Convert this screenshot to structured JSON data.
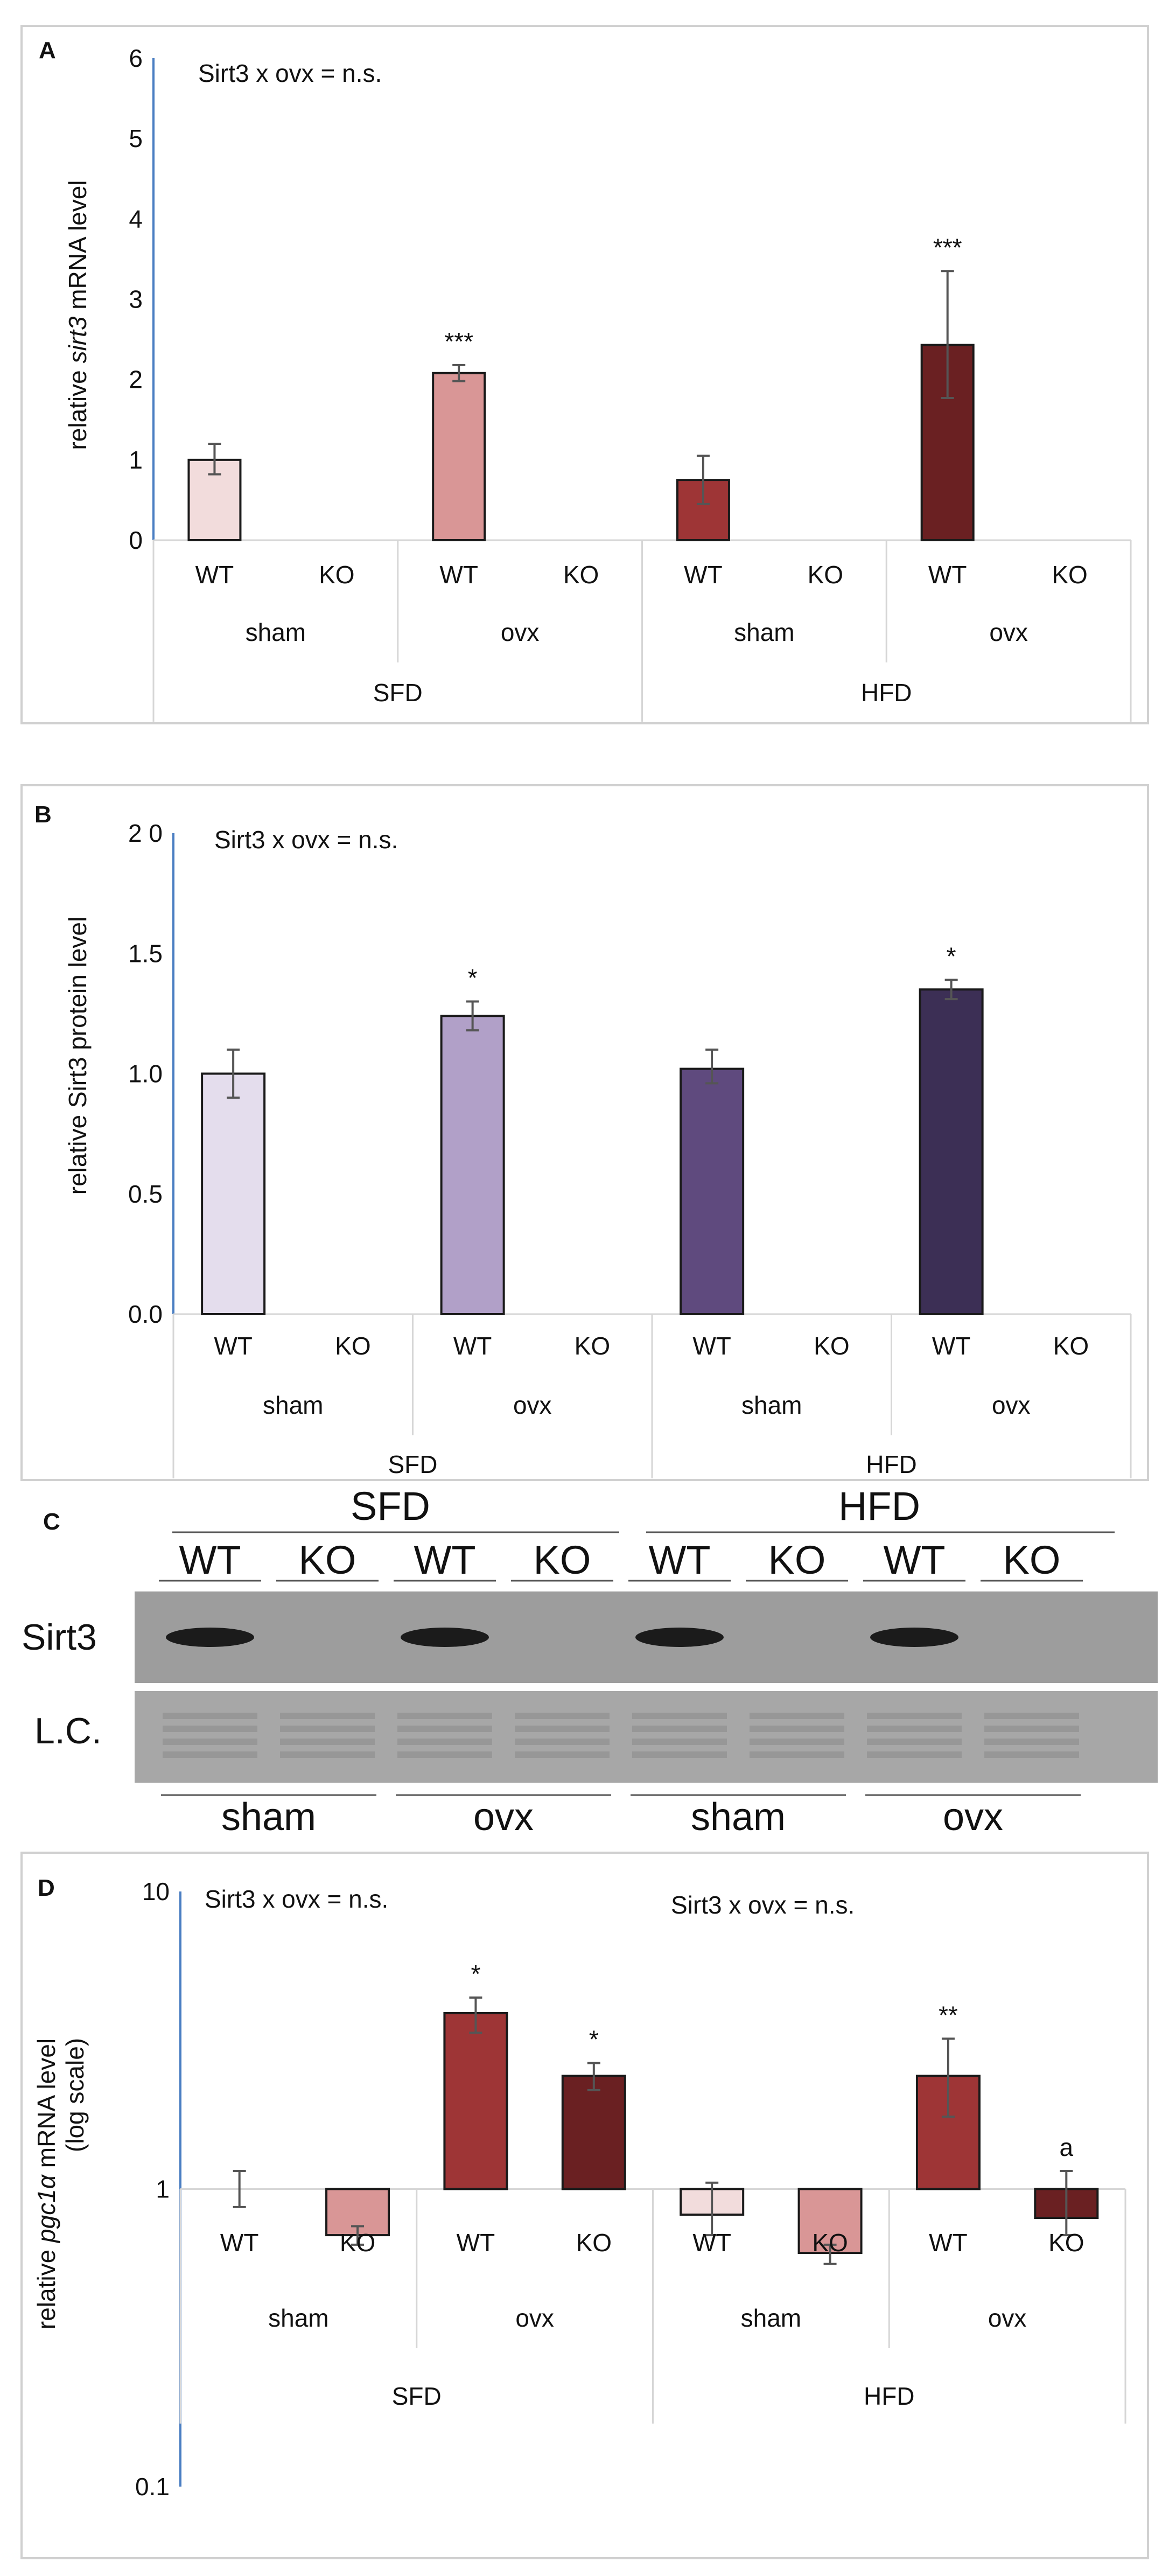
{
  "colors": {
    "a_sham_sfd": "#f2dcdc",
    "a_ovx_sfd": "#d99696",
    "a_sham_hfd": "#9e3536",
    "a_ovx_hfd": "#6a2022",
    "b_sham_sfd": "#e4dded",
    "b_ovx_sfd": "#b1a0c8",
    "b_sham_hfd": "#5f4a7e",
    "b_ovx_hfd": "#3c2f55",
    "d_sham_sfd": "#f2dcdc",
    "d_sham_sfd_ko": "#d99696",
    "d_ovx": "#9e3536",
    "d_ovx_ko": "#6a2022",
    "axis": "#4a7ec2",
    "frame": "#d0d0d0"
  },
  "panels": {
    "a": {
      "letter": "A",
      "annotation": "Sirt3 x ovx = n.s."
    },
    "b": {
      "letter": "B",
      "annotation": "Sirt3 x ovx = n.s."
    },
    "c": {
      "letter": "C"
    },
    "d": {
      "letter": "D",
      "annotation_left": "Sirt3 x ovx = n.s.",
      "annotation_right": "Sirt3 x ovx = n.s."
    }
  },
  "blot": {
    "diet_labels": [
      "SFD",
      "HFD"
    ],
    "lane_labels": [
      "WT",
      "KO",
      "WT",
      "KO",
      "WT",
      "KO",
      "WT",
      "KO"
    ],
    "row_labels": [
      "Sirt3",
      "L.C."
    ],
    "group_labels": [
      "sham",
      "ovx",
      "sham",
      "ovx"
    ],
    "sirt3_band_present": [
      true,
      false,
      true,
      false,
      true,
      false,
      true,
      false
    ]
  },
  "chart_data": [
    {
      "type": "bar",
      "panel": "A",
      "title": "",
      "ylabel_prefix": "relative ",
      "ylabel_italic": "sirt3",
      "ylabel_suffix": " mRNA level",
      "ylim": [
        0,
        6
      ],
      "yticks": [
        "0",
        "1",
        "2",
        "3",
        "4",
        "5",
        "6"
      ],
      "yscale": "linear",
      "categories": [
        "WT",
        "KO",
        "WT",
        "KO",
        "WT",
        "KO",
        "WT",
        "KO"
      ],
      "groups": [
        "sham",
        "ovx",
        "sham",
        "ovx"
      ],
      "diets": [
        "SFD",
        "HFD"
      ],
      "values": [
        1.0,
        null,
        2.08,
        null,
        0.75,
        null,
        2.43,
        null
      ],
      "err_low": [
        0.82,
        null,
        1.98,
        null,
        0.45,
        null,
        1.77,
        null
      ],
      "err_high": [
        1.2,
        null,
        2.18,
        null,
        1.05,
        null,
        3.35,
        null
      ],
      "significance": [
        "",
        "",
        "***",
        "",
        "",
        "",
        "***",
        ""
      ],
      "annotation": "Sirt3 x ovx = n.s."
    },
    {
      "type": "bar",
      "panel": "B",
      "title": "",
      "ylabel": "relative Sirt3 protein level",
      "ylim": [
        0,
        2.0
      ],
      "yticks": [
        "0.0",
        "0.5",
        "1.0",
        "1.5",
        "2 0"
      ],
      "yscale": "linear",
      "categories": [
        "WT",
        "KO",
        "WT",
        "KO",
        "WT",
        "KO",
        "WT",
        "KO"
      ],
      "groups": [
        "sham",
        "ovx",
        "sham",
        "ovx"
      ],
      "diets": [
        "SFD",
        "HFD"
      ],
      "values": [
        1.0,
        null,
        1.24,
        null,
        1.02,
        null,
        1.35,
        null
      ],
      "err_low": [
        0.9,
        null,
        1.18,
        null,
        0.96,
        null,
        1.31,
        null
      ],
      "err_high": [
        1.1,
        null,
        1.3,
        null,
        1.1,
        null,
        1.39,
        null
      ],
      "significance": [
        "",
        "",
        "*",
        "",
        "",
        "",
        "*",
        ""
      ],
      "annotation": "Sirt3 x ovx = n.s."
    },
    {
      "type": "bar",
      "panel": "D",
      "title": "",
      "ylabel_line1_prefix": "relative ",
      "ylabel_line1_italic": "pgc1α",
      "ylabel_line1_suffix": " mRNA level",
      "ylabel_line2": "(log scale)",
      "ylim": [
        0.1,
        10
      ],
      "yticks": [
        "0.1",
        "1",
        "10"
      ],
      "yscale": "log",
      "categories": [
        "WT",
        "KO",
        "WT",
        "KO",
        "WT",
        "KO",
        "WT",
        "KO"
      ],
      "groups": [
        "sham",
        "ovx",
        "sham",
        "ovx"
      ],
      "diets": [
        "SFD",
        "HFD"
      ],
      "values": [
        1.0,
        0.7,
        3.9,
        2.4,
        0.82,
        0.61,
        2.4,
        0.8
      ],
      "err_low": [
        0.87,
        0.65,
        3.35,
        2.15,
        0.7,
        0.56,
        1.75,
        0.7
      ],
      "err_high": [
        1.15,
        0.75,
        4.4,
        2.65,
        1.05,
        0.65,
        3.2,
        1.15
      ],
      "significance": [
        "",
        "",
        "*",
        "*",
        "",
        "",
        "**",
        "a"
      ],
      "annotation_left": "Sirt3 x ovx = n.s.",
      "annotation_right": "Sirt3 x ovx = n.s."
    }
  ]
}
